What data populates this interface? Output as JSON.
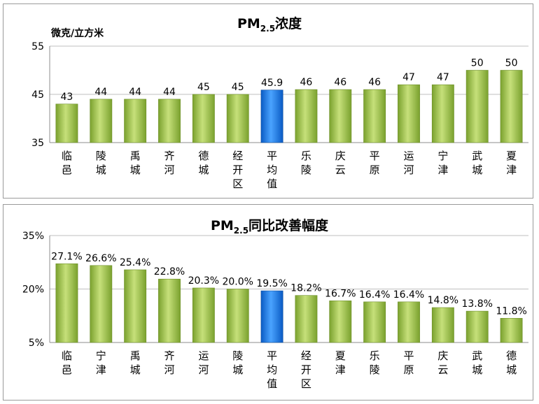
{
  "chart_data": [
    {
      "type": "bar",
      "title_main": "PM",
      "title_sub": "2.5",
      "title_rest": "浓度",
      "ylabel": "微克/立方米",
      "ylim": [
        35,
        55
      ],
      "yticks": [
        "55",
        "45",
        "35"
      ],
      "grid": true,
      "categories": [
        "临邑",
        "陵城",
        "禹城",
        "齐河",
        "德城",
        "经开区",
        "平均值",
        "乐陵",
        "庆云",
        "平原",
        "运河",
        "宁津",
        "武城",
        "夏津"
      ],
      "values": [
        43,
        44,
        44,
        44,
        45,
        45,
        45.9,
        46,
        46,
        46,
        47,
        47,
        50,
        50
      ],
      "value_labels": [
        "43",
        "44",
        "44",
        "44",
        "45",
        "45",
        "45.9",
        "46",
        "46",
        "46",
        "47",
        "47",
        "50",
        "50"
      ],
      "highlight_index": 6
    },
    {
      "type": "bar",
      "title_main": "PM",
      "title_sub": "2.5",
      "title_rest": "同比改善幅度",
      "ylabel": "",
      "ylim": [
        5,
        35
      ],
      "yticks": [
        "35%",
        "20%",
        "5%"
      ],
      "grid": true,
      "categories": [
        "临邑",
        "宁津",
        "禹城",
        "齐河",
        "运河",
        "陵城",
        "平均值",
        "经开区",
        "夏津",
        "乐陵",
        "平原",
        "庆云",
        "武城",
        "德城"
      ],
      "values": [
        27.1,
        26.6,
        25.4,
        22.8,
        20.3,
        20.0,
        19.5,
        18.2,
        16.7,
        16.4,
        16.4,
        14.8,
        13.8,
        11.8
      ],
      "value_labels": [
        "27.1%",
        "26.6%",
        "25.4%",
        "22.8%",
        "20.3%",
        "20.0%",
        "19.5%",
        "18.2%",
        "16.7%",
        "16.4%",
        "16.4%",
        "14.8%",
        "13.8%",
        "11.8%"
      ],
      "highlight_index": 6
    }
  ],
  "colors": {
    "bar_green_light": "#c6e07a",
    "bar_green_dark": "#7aa12e",
    "bar_blue_light": "#4aa3ff",
    "bar_blue_dark": "#0a5bc4",
    "grid": "#bfbfbf",
    "frame": "#9a9a9a"
  }
}
